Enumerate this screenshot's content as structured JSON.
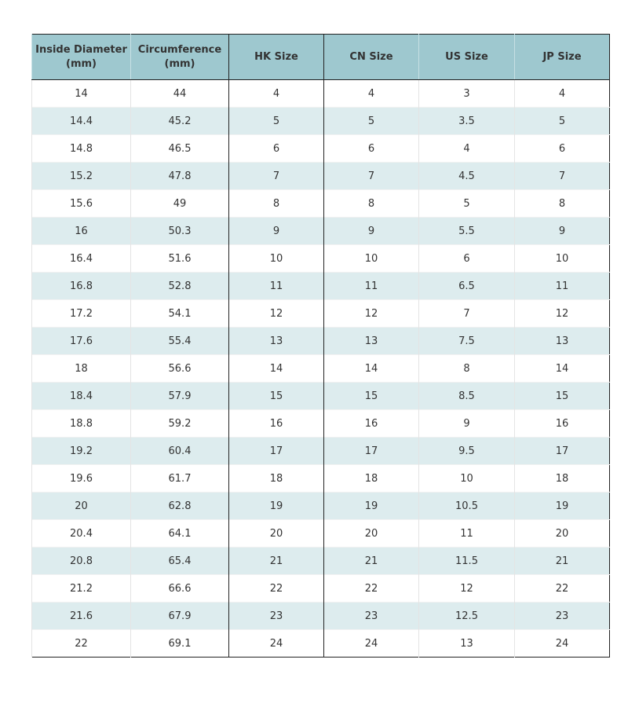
{
  "table": {
    "header": [
      "Inside Diameter (mm)",
      "Circumference (mm)",
      "HK Size",
      "CN Size",
      "US Size",
      "JP Size"
    ],
    "rows": [
      [
        "14",
        "44",
        "4",
        "4",
        "3",
        "4"
      ],
      [
        "14.4",
        "45.2",
        "5",
        "5",
        "3.5",
        "5"
      ],
      [
        "14.8",
        "46.5",
        "6",
        "6",
        "4",
        "6"
      ],
      [
        "15.2",
        "47.8",
        "7",
        "7",
        "4.5",
        "7"
      ],
      [
        "15.6",
        "49",
        "8",
        "8",
        "5",
        "8"
      ],
      [
        "16",
        "50.3",
        "9",
        "9",
        "5.5",
        "9"
      ],
      [
        "16.4",
        "51.6",
        "10",
        "10",
        "6",
        "10"
      ],
      [
        "16.8",
        "52.8",
        "11",
        "11",
        "6.5",
        "11"
      ],
      [
        "17.2",
        "54.1",
        "12",
        "12",
        "7",
        "12"
      ],
      [
        "17.6",
        "55.4",
        "13",
        "13",
        "7.5",
        "13"
      ],
      [
        "18",
        "56.6",
        "14",
        "14",
        "8",
        "14"
      ],
      [
        "18.4",
        "57.9",
        "15",
        "15",
        "8.5",
        "15"
      ],
      [
        "18.8",
        "59.2",
        "16",
        "16",
        "9",
        "16"
      ],
      [
        "19.2",
        "60.4",
        "17",
        "17",
        "9.5",
        "17"
      ],
      [
        "19.6",
        "61.7",
        "18",
        "18",
        "10",
        "18"
      ],
      [
        "20",
        "62.8",
        "19",
        "19",
        "10.5",
        "19"
      ],
      [
        "20.4",
        "64.1",
        "20",
        "20",
        "11",
        "20"
      ],
      [
        "20.8",
        "65.4",
        "21",
        "21",
        "11.5",
        "21"
      ],
      [
        "21.2",
        "66.6",
        "22",
        "22",
        "12",
        "22"
      ],
      [
        "21.6",
        "67.9",
        "23",
        "23",
        "12.5",
        "23"
      ],
      [
        "22",
        "69.1",
        "24",
        "24",
        "13",
        "24"
      ]
    ]
  }
}
